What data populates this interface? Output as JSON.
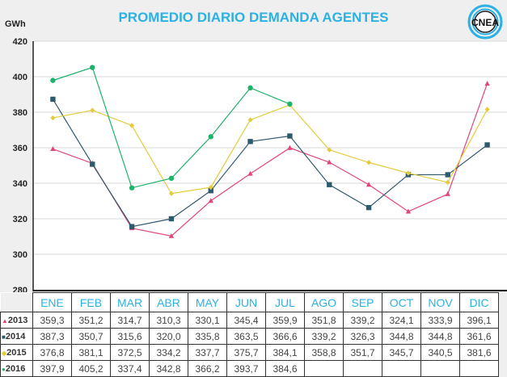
{
  "title": "PROMEDIO DIARIO DEMANDA AGENTES",
  "logo_text": "CNEA",
  "chart_data": {
    "type": "line",
    "title": "PROMEDIO DIARIO DEMANDA AGENTES",
    "ylabel": "GWh",
    "xlabel": "",
    "ylim": [
      280,
      420
    ],
    "yticks": [
      280,
      300,
      320,
      340,
      360,
      380,
      400,
      420
    ],
    "grid": true,
    "categories": [
      "ENE",
      "FEB",
      "MAR",
      "ABR",
      "MAY",
      "JUN",
      "JUL",
      "AGO",
      "SEP",
      "OCT",
      "NOV",
      "DIC"
    ],
    "series": [
      {
        "name": "2013",
        "color": "#e0457b",
        "marker": "triangle",
        "values": [
          359.3,
          351.2,
          314.7,
          310.3,
          330.1,
          345.4,
          359.9,
          351.8,
          339.2,
          324.1,
          333.9,
          396.1
        ],
        "labels": [
          "359,3",
          "351,2",
          "314,7",
          "310,3",
          "330,1",
          "345,4",
          "359,9",
          "351,8",
          "339,2",
          "324,1",
          "333,9",
          "396,1"
        ]
      },
      {
        "name": "2014",
        "color": "#2e5a6e",
        "marker": "square",
        "values": [
          387.3,
          350.7,
          315.6,
          320.0,
          335.8,
          363.5,
          366.6,
          339.2,
          326.3,
          344.8,
          344.8,
          361.6
        ],
        "labels": [
          "387,3",
          "350,7",
          "315,6",
          "320,0",
          "335,8",
          "363,5",
          "366,6",
          "339,2",
          "326,3",
          "344,8",
          "344,8",
          "361,6"
        ]
      },
      {
        "name": "2015",
        "color": "#e3cb3a",
        "marker": "diamond",
        "values": [
          376.8,
          381.1,
          372.5,
          334.2,
          337.7,
          375.7,
          384.1,
          358.8,
          351.7,
          345.7,
          340.5,
          381.6
        ],
        "labels": [
          "376,8",
          "381,1",
          "372,5",
          "334,2",
          "337,7",
          "375,7",
          "384,1",
          "358,8",
          "351,7",
          "345,7",
          "340,5",
          "381,6"
        ]
      },
      {
        "name": "2016",
        "color": "#1db36b",
        "marker": "circle",
        "values": [
          397.9,
          405.2,
          337.4,
          342.8,
          366.2,
          393.7,
          384.6,
          null,
          null,
          null,
          null,
          null
        ],
        "labels": [
          "397,9",
          "405,2",
          "337,4",
          "342,8",
          "366,2",
          "393,7",
          "384,6",
          "",
          "",
          "",
          "",
          ""
        ]
      }
    ]
  }
}
